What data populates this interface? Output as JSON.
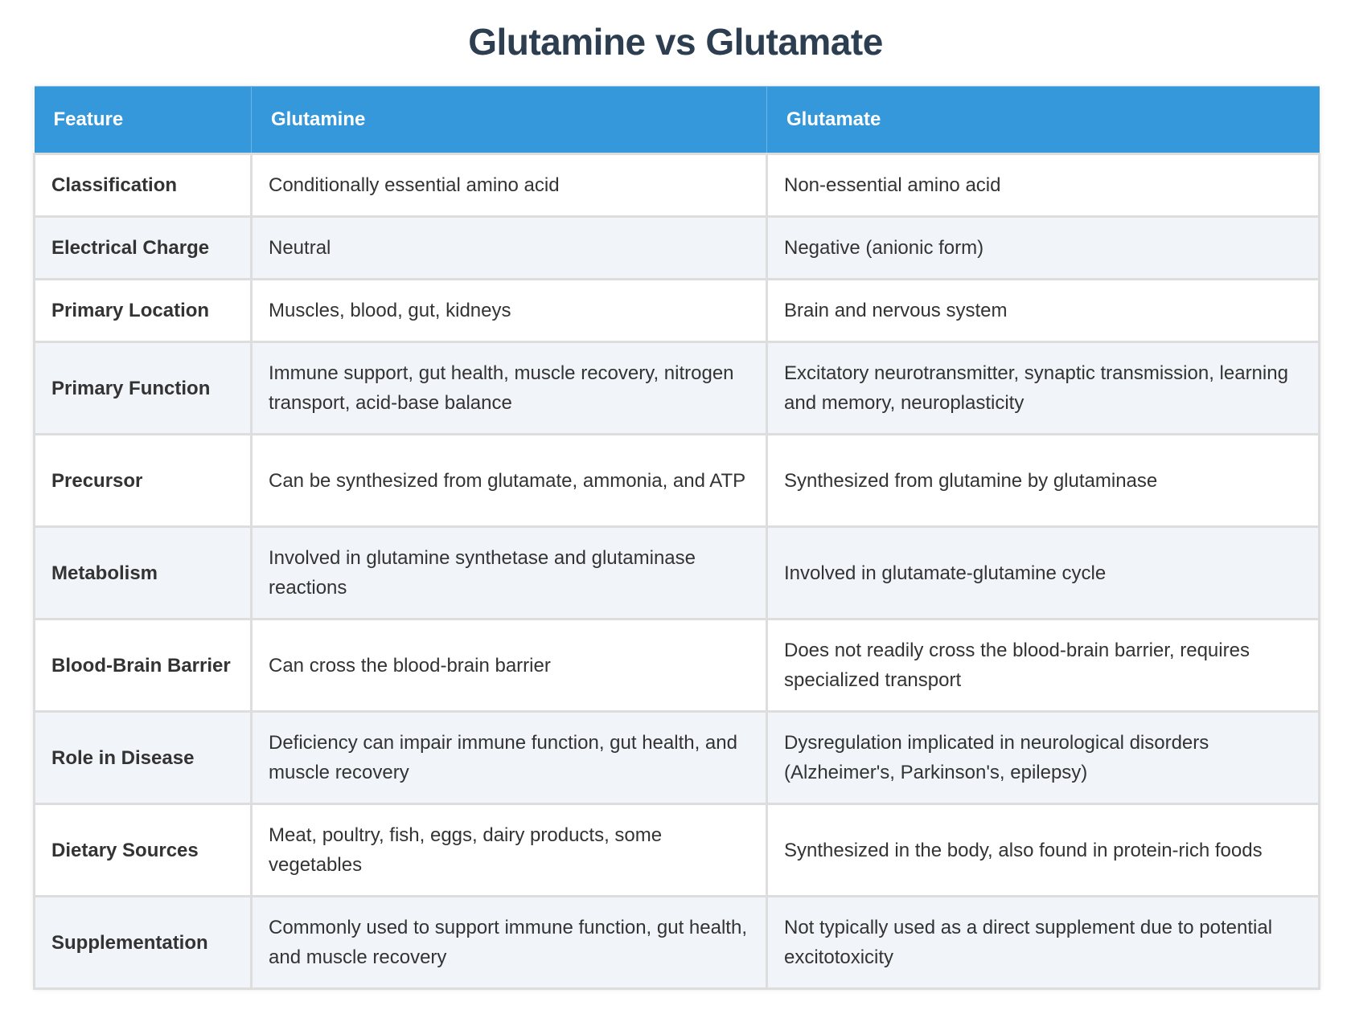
{
  "title": "Glutamine vs Glutamate",
  "colors": {
    "title": "#2c3e50",
    "header_bg": "#3498db",
    "header_text": "#ffffff",
    "row_alt_bg": "#f1f4f9",
    "border": "#dddddd",
    "text": "#333333"
  },
  "table": {
    "headers": [
      "Feature",
      "Glutamine",
      "Glutamate"
    ],
    "rows": [
      {
        "feature": "Classification",
        "glutamine": "Conditionally essential amino acid",
        "glutamate": "Non-essential amino acid"
      },
      {
        "feature": "Electrical Charge",
        "glutamine": "Neutral",
        "glutamate": "Negative (anionic form)"
      },
      {
        "feature": "Primary Location",
        "glutamine": "Muscles, blood, gut, kidneys",
        "glutamate": "Brain and nervous system"
      },
      {
        "feature": "Primary Function",
        "glutamine": "Immune support, gut health, muscle recovery, nitrogen transport, acid-base balance",
        "glutamate": "Excitatory neurotransmitter, synaptic transmission, learning and memory, neuroplasticity"
      },
      {
        "feature": "Precursor",
        "glutamine": "Can be synthesized from glutamate, ammonia, and ATP",
        "glutamate": "Synthesized from glutamine by glutaminase"
      },
      {
        "feature": "Metabolism",
        "glutamine": "Involved in glutamine synthetase and glutaminase reactions",
        "glutamate": "Involved in glutamate-glutamine cycle"
      },
      {
        "feature": "Blood-Brain Barrier",
        "glutamine": "Can cross the blood-brain barrier",
        "glutamate": "Does not readily cross the blood-brain barrier, requires specialized transport"
      },
      {
        "feature": "Role in Disease",
        "glutamine": "Deficiency can impair immune function, gut health, and muscle recovery",
        "glutamate": "Dysregulation implicated in neurological disorders (Alzheimer's, Parkinson's, epilepsy)"
      },
      {
        "feature": "Dietary Sources",
        "glutamine": "Meat, poultry, fish, eggs, dairy products, some vegetables",
        "glutamate": "Synthesized in the body, also found in protein-rich foods"
      },
      {
        "feature": "Supplementation",
        "glutamine": "Commonly used to support immune function, gut health, and muscle recovery",
        "glutamate": "Not typically used as a direct supplement due to potential excitotoxicity"
      }
    ]
  }
}
